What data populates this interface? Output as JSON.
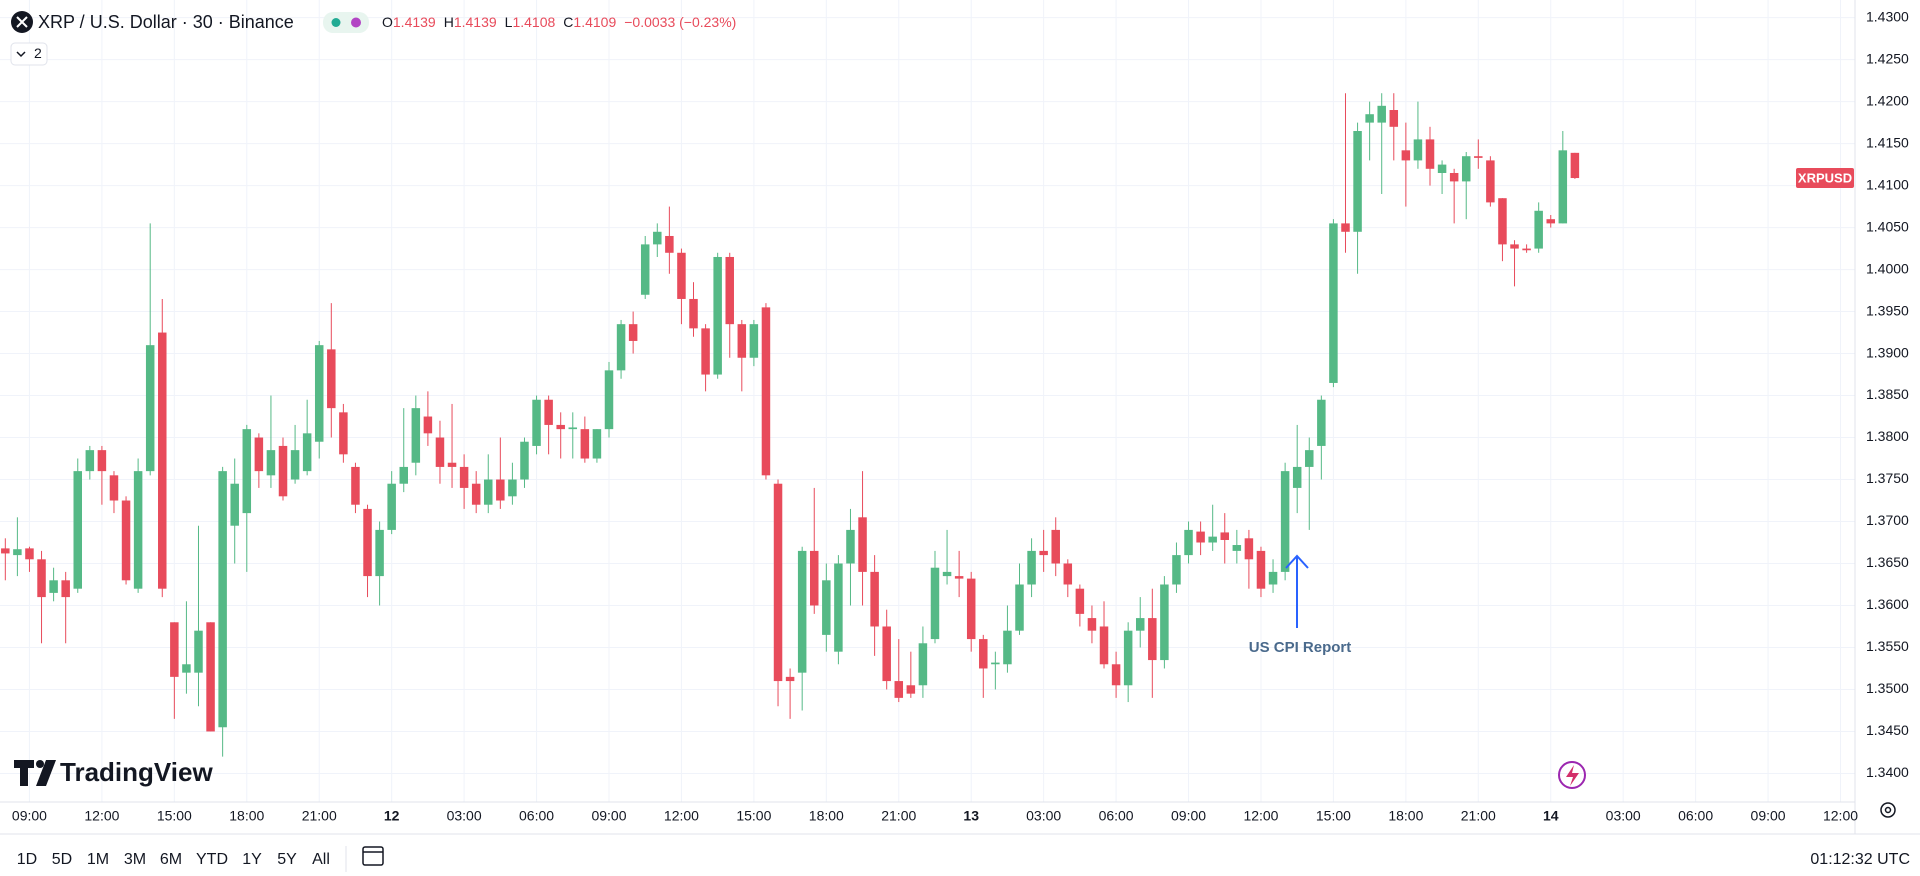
{
  "chart_data": {
    "type": "candlestick",
    "title": "XRP / U.S. Dollar · 30 · Binance",
    "ohlc_labels": [
      "O",
      "H",
      "L",
      "C"
    ],
    "change": "−0.0033 (−0.23%)",
    "symbol_label": "XRPUSD",
    "annotation": "US CPI Report",
    "up_color": "#55b986",
    "down_color": "#e84b5b",
    "grid": true,
    "open": [
      1.3668,
      1.366,
      1.3668,
      1.3655,
      1.3615,
      1.363,
      1.362,
      1.376,
      1.3785,
      1.3755,
      1.3725,
      1.362,
      1.376,
      1.3925,
      1.358,
      1.352,
      1.352,
      1.358,
      1.3455,
      1.3695,
      1.371,
      1.38,
      1.3755,
      1.379,
      1.375,
      1.376,
      1.3795,
      1.3905,
      1.383,
      1.3765,
      1.3715,
      1.3635,
      1.369,
      1.3745,
      1.377,
      1.3825,
      1.38,
      1.377,
      1.3765,
      1.3745,
      1.372,
      1.375,
      1.373,
      1.375,
      1.379,
      1.3845,
      1.3815,
      1.381,
      1.381,
      1.3775,
      1.381,
      1.388,
      1.3935,
      1.397,
      1.403,
      1.404,
      1.402,
      1.3965,
      1.393,
      1.3875,
      1.4015,
      1.3935,
      1.3895,
      1.3955,
      1.3745,
      1.3515,
      1.352,
      1.3665,
      1.3565,
      1.3545,
      1.365,
      1.3705,
      1.364,
      1.3575,
      1.351,
      1.3505,
      1.3505,
      1.356,
      1.3635,
      1.3635,
      1.3632,
      1.356,
      1.353,
      1.353,
      1.357,
      1.3625,
      1.3665,
      1.369,
      1.365,
      1.362,
      1.3585,
      1.3575,
      1.353,
      1.3505,
      1.357,
      1.3585,
      1.3535,
      1.3625,
      1.366,
      1.3688,
      1.3675,
      1.3687,
      1.3665,
      1.368,
      1.3665,
      1.3625,
      1.364,
      1.374,
      1.3765,
      1.379,
      1.3865,
      1.4055,
      1.4045,
      1.4175,
      1.4175,
      1.419,
      1.4142,
      1.413,
      1.4155,
      1.4115,
      1.4115,
      1.4105,
      1.4135,
      1.413,
      1.4085,
      1.403,
      1.4025,
      1.4025,
      1.406,
      1.4055,
      1.4139
    ],
    "high": [
      1.368,
      1.3705,
      1.367,
      1.3665,
      1.3645,
      1.364,
      1.3775,
      1.379,
      1.379,
      1.376,
      1.373,
      1.3775,
      1.4055,
      1.3965,
      1.358,
      1.3605,
      1.3695,
      1.358,
      1.3765,
      1.3775,
      1.3815,
      1.3805,
      1.385,
      1.38,
      1.3815,
      1.3845,
      1.3915,
      1.396,
      1.384,
      1.377,
      1.372,
      1.37,
      1.376,
      1.3835,
      1.385,
      1.3855,
      1.382,
      1.384,
      1.378,
      1.376,
      1.378,
      1.38,
      1.377,
      1.38,
      1.385,
      1.385,
      1.383,
      1.383,
      1.3825,
      1.381,
      1.389,
      1.394,
      1.395,
      1.404,
      1.4055,
      1.4075,
      1.4025,
      1.3985,
      1.3935,
      1.402,
      1.402,
      1.394,
      1.394,
      1.396,
      1.375,
      1.3525,
      1.367,
      1.374,
      1.365,
      1.366,
      1.3715,
      1.376,
      1.366,
      1.3595,
      1.356,
      1.3545,
      1.3575,
      1.3665,
      1.369,
      1.3665,
      1.364,
      1.3565,
      1.3545,
      1.36,
      1.365,
      1.368,
      1.369,
      1.3705,
      1.3655,
      1.3625,
      1.36,
      1.3605,
      1.3545,
      1.358,
      1.361,
      1.362,
      1.3635,
      1.3675,
      1.37,
      1.37,
      1.372,
      1.371,
      1.369,
      1.369,
      1.367,
      1.3655,
      1.377,
      1.3815,
      1.38,
      1.385,
      1.406,
      1.421,
      1.4175,
      1.42,
      1.421,
      1.421,
      1.4175,
      1.42,
      1.417,
      1.413,
      1.412,
      1.414,
      1.4155,
      1.4135,
      1.4085,
      1.4035,
      1.403,
      1.408,
      1.4065,
      1.4165,
      1.4139
    ],
    "low": [
      1.363,
      1.3635,
      1.364,
      1.3555,
      1.3605,
      1.3555,
      1.3615,
      1.375,
      1.372,
      1.371,
      1.3625,
      1.3615,
      1.3755,
      1.361,
      1.3465,
      1.3495,
      1.348,
      1.345,
      1.342,
      1.365,
      1.364,
      1.374,
      1.374,
      1.3725,
      1.3745,
      1.3755,
      1.3775,
      1.38,
      1.377,
      1.371,
      1.361,
      1.36,
      1.3685,
      1.3735,
      1.3755,
      1.379,
      1.3745,
      1.374,
      1.3715,
      1.371,
      1.371,
      1.3715,
      1.372,
      1.374,
      1.378,
      1.378,
      1.3775,
      1.3775,
      1.377,
      1.377,
      1.38,
      1.387,
      1.39,
      1.3965,
      1.4015,
      1.3995,
      1.3935,
      1.392,
      1.3855,
      1.387,
      1.3895,
      1.3855,
      1.3885,
      1.375,
      1.348,
      1.3465,
      1.3475,
      1.359,
      1.3545,
      1.353,
      1.36,
      1.36,
      1.354,
      1.35,
      1.3485,
      1.349,
      1.349,
      1.3555,
      1.3625,
      1.361,
      1.3545,
      1.349,
      1.35,
      1.352,
      1.3565,
      1.361,
      1.364,
      1.3635,
      1.361,
      1.3575,
      1.3555,
      1.3525,
      1.349,
      1.3485,
      1.355,
      1.349,
      1.3525,
      1.3615,
      1.365,
      1.366,
      1.3665,
      1.365,
      1.365,
      1.362,
      1.361,
      1.3615,
      1.363,
      1.371,
      1.369,
      1.375,
      1.386,
      1.402,
      1.3995,
      1.413,
      1.409,
      1.413,
      1.4075,
      1.412,
      1.41,
      1.409,
      1.4055,
      1.406,
      1.412,
      1.4075,
      1.401,
      1.398,
      1.402,
      1.402,
      1.405,
      1.4055,
      1.4108
    ],
    "close": [
      1.3662,
      1.3667,
      1.3655,
      1.361,
      1.363,
      1.361,
      1.376,
      1.3785,
      1.376,
      1.3725,
      1.363,
      1.376,
      1.391,
      1.362,
      1.3515,
      1.353,
      1.357,
      1.345,
      1.376,
      1.3745,
      1.381,
      1.376,
      1.3785,
      1.373,
      1.3785,
      1.3805,
      1.391,
      1.3835,
      1.378,
      1.372,
      1.3635,
      1.369,
      1.3745,
      1.3765,
      1.3835,
      1.3805,
      1.3765,
      1.3765,
      1.374,
      1.372,
      1.375,
      1.3725,
      1.375,
      1.3795,
      1.3845,
      1.3815,
      1.381,
      1.3812,
      1.3775,
      1.381,
      1.388,
      1.3935,
      1.3915,
      1.403,
      1.4045,
      1.402,
      1.3965,
      1.393,
      1.3875,
      1.4015,
      1.3935,
      1.3895,
      1.3935,
      1.3755,
      1.351,
      1.351,
      1.3665,
      1.36,
      1.363,
      1.365,
      1.369,
      1.364,
      1.3575,
      1.351,
      1.349,
      1.3495,
      1.3555,
      1.3645,
      1.364,
      1.3632,
      1.356,
      1.3525,
      1.3532,
      1.357,
      1.3625,
      1.3665,
      1.366,
      1.365,
      1.3625,
      1.359,
      1.357,
      1.353,
      1.3505,
      1.357,
      1.3585,
      1.3535,
      1.3625,
      1.366,
      1.369,
      1.3675,
      1.3682,
      1.3678,
      1.3672,
      1.3655,
      1.362,
      1.364,
      1.376,
      1.3765,
      1.3785,
      1.3845,
      1.4055,
      1.4045,
      1.4165,
      1.4185,
      1.4195,
      1.417,
      1.413,
      1.4155,
      1.412,
      1.4125,
      1.4105,
      1.4135,
      1.4133,
      1.408,
      1.403,
      1.4025,
      1.4023,
      1.407,
      1.4055,
      1.4142,
      1.4109
    ],
    "xlim": [
      -0.44,
      153.2
    ],
    "xticks": [
      {
        "value": 2,
        "label": "09:00"
      },
      {
        "value": 8,
        "label": "12:00"
      },
      {
        "value": 14,
        "label": "15:00"
      },
      {
        "value": 20,
        "label": "18:00"
      },
      {
        "value": 26,
        "label": "21:00"
      },
      {
        "value": 32,
        "label": "12"
      },
      {
        "value": 38,
        "label": "03:00"
      },
      {
        "value": 44,
        "label": "06:00"
      },
      {
        "value": 50,
        "label": "09:00"
      },
      {
        "value": 56,
        "label": "12:00"
      },
      {
        "value": 62,
        "label": "15:00"
      },
      {
        "value": 68,
        "label": "18:00"
      },
      {
        "value": 74,
        "label": "21:00"
      },
      {
        "value": 80,
        "label": "13"
      },
      {
        "value": 86,
        "label": "03:00"
      },
      {
        "value": 92,
        "label": "06:00"
      },
      {
        "value": 98,
        "label": "09:00"
      },
      {
        "value": 104,
        "label": "12:00"
      },
      {
        "value": 110,
        "label": "15:00"
      },
      {
        "value": 116,
        "label": "18:00"
      },
      {
        "value": 122,
        "label": "21:00"
      },
      {
        "value": 128,
        "label": "14"
      },
      {
        "value": 134,
        "label": "03:00"
      },
      {
        "value": 140,
        "label": "06:00"
      },
      {
        "value": 146,
        "label": "09:00"
      },
      {
        "value": 152,
        "label": "12:00"
      }
    ],
    "ylim": [
      1.3366,
      1.4321
    ],
    "yticks": [
      {
        "value": 1.34,
        "label": "1.3400"
      },
      {
        "value": 1.345,
        "label": "1.3450"
      },
      {
        "value": 1.35,
        "label": "1.3500"
      },
      {
        "value": 1.355,
        "label": "1.3550"
      },
      {
        "value": 1.36,
        "label": "1.3600"
      },
      {
        "value": 1.365,
        "label": "1.3650"
      },
      {
        "value": 1.37,
        "label": "1.3700"
      },
      {
        "value": 1.375,
        "label": "1.3750"
      },
      {
        "value": 1.38,
        "label": "1.3800"
      },
      {
        "value": 1.385,
        "label": "1.3850"
      },
      {
        "value": 1.39,
        "label": "1.3900"
      },
      {
        "value": 1.395,
        "label": "1.3950"
      },
      {
        "value": 1.4,
        "label": "1.4000"
      },
      {
        "value": 1.405,
        "label": "1.4050"
      },
      {
        "value": 1.41,
        "label": "1.4100"
      },
      {
        "value": 1.415,
        "label": "1.4150"
      },
      {
        "value": 1.42,
        "label": "1.4200"
      },
      {
        "value": 1.425,
        "label": "1.4250"
      },
      {
        "value": 1.43,
        "label": "1.4300"
      }
    ]
  },
  "indicator_count": 2,
  "brand": "TradingView",
  "toolbar": {
    "ranges": [
      "1D",
      "5D",
      "1M",
      "3M",
      "6M",
      "YTD",
      "1Y",
      "5Y",
      "All"
    ],
    "clock": "01:12:32 UTC"
  }
}
